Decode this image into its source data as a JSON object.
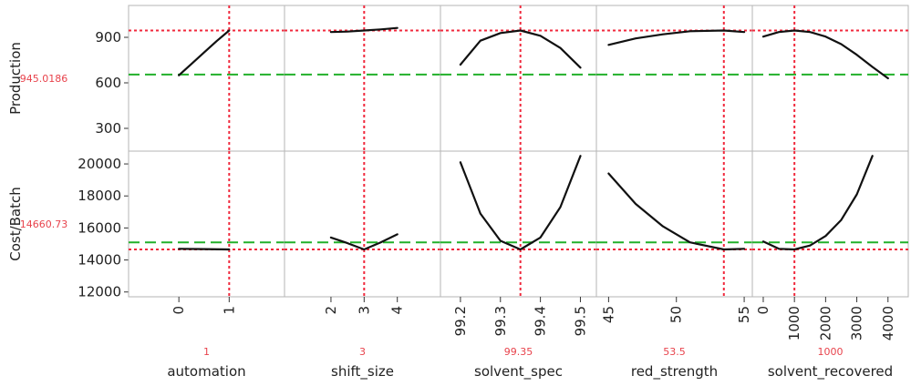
{
  "chart_data": {
    "type": "line",
    "title": "",
    "colors": {
      "curve": "#111111",
      "current_line": "#f0283c",
      "reference_line": "#22b02a",
      "current_value_text": "#e8434c",
      "panel_border": "#b5b5b5"
    },
    "responses": [
      {
        "name": "Production",
        "current_value": "945.0186",
        "current": 945.0186,
        "reference": 655,
        "ylim": [
          150,
          1110
        ],
        "yticks": [
          300,
          600,
          900
        ]
      },
      {
        "name": "Cost/Batch",
        "current_value": "14660.73",
        "current": 14660.73,
        "reference": 15100,
        "ylim": [
          11700,
          20800
        ],
        "yticks": [
          12000,
          14000,
          16000,
          18000,
          20000
        ]
      }
    ],
    "factors": [
      {
        "name": "automation",
        "current_value": "1",
        "current": 1,
        "xlim": [
          -1,
          2.1
        ],
        "xticks": [
          "0",
          "1"
        ],
        "xtick_values": [
          0,
          1
        ],
        "curves": [
          {
            "x": [
              0,
              0.25,
              0.5,
              0.75,
              1
            ],
            "y": [
              650,
              725,
              800,
              875,
              945
            ]
          },
          {
            "x": [
              0,
              0.5,
              1
            ],
            "y": [
              14700,
              14680,
              14660
            ]
          }
        ]
      },
      {
        "name": "shift_size",
        "current_value": "3",
        "current": 3,
        "xlim": [
          0.6,
          5.3
        ],
        "xticks": [
          "2",
          "3",
          "4"
        ],
        "xtick_values": [
          2,
          3,
          4
        ],
        "curves": [
          {
            "x": [
              2,
              2.5,
              3,
              3.5,
              4
            ],
            "y": [
              935,
              938,
              945,
              952,
              962
            ]
          },
          {
            "x": [
              2,
              2.5,
              3,
              3.5,
              4
            ],
            "y": [
              15400,
              15050,
              14660,
              15100,
              15600
            ]
          }
        ]
      },
      {
        "name": "solvent_spec",
        "current_value": "99.35",
        "current": 99.35,
        "xlim": [
          99.15,
          99.54
        ],
        "xticks": [
          "99.2",
          "99.3",
          "99.4",
          "99.5"
        ],
        "xtick_values": [
          99.2,
          99.3,
          99.4,
          99.5
        ],
        "curves": [
          {
            "x": [
              99.2,
              99.25,
              99.3,
              99.35,
              99.4,
              99.45,
              99.5
            ],
            "y": [
              720,
              878,
              928,
              945,
              910,
              830,
              700
            ]
          },
          {
            "x": [
              99.2,
              99.25,
              99.3,
              99.35,
              99.4,
              99.45,
              99.5
            ],
            "y": [
              20100,
              16900,
              15200,
              14660,
              15400,
              17300,
              20500
            ]
          }
        ]
      },
      {
        "name": "red_strength",
        "current_value": "53.5",
        "current": 53.5,
        "xlim": [
          44.1,
          55.6
        ],
        "xticks": [
          "45",
          "50",
          "55"
        ],
        "xtick_values": [
          45,
          50,
          55
        ],
        "curves": [
          {
            "x": [
              45,
              47,
              49,
              51,
              53.5,
              55
            ],
            "y": [
              850,
              893,
              920,
              940,
              945,
              935
            ]
          },
          {
            "x": [
              45,
              47,
              49,
              51,
              53.5,
              55
            ],
            "y": [
              19400,
              17500,
              16100,
              15100,
              14660,
              14700
            ]
          }
        ]
      },
      {
        "name": "solvent_recovered",
        "current_value": "1000",
        "current": 1000,
        "xlim": [
          -350,
          4650
        ],
        "xticks": [
          "0",
          "1000",
          "2000",
          "3000",
          "4000"
        ],
        "xtick_values": [
          0,
          1000,
          2000,
          3000,
          4000
        ],
        "curves": [
          {
            "x": [
              0,
              500,
              1000,
              1500,
              2000,
              2500,
              3000,
              3500,
              4000
            ],
            "y": [
              905,
              935,
              945,
              935,
              905,
              855,
              785,
              705,
              630
            ]
          },
          {
            "x": [
              0,
              500,
              1000,
              1500,
              2000,
              2500,
              3000,
              3500
            ],
            "y": [
              15150,
              14700,
              14660,
              14900,
              15500,
              16500,
              18100,
              20500
            ]
          }
        ]
      }
    ]
  }
}
